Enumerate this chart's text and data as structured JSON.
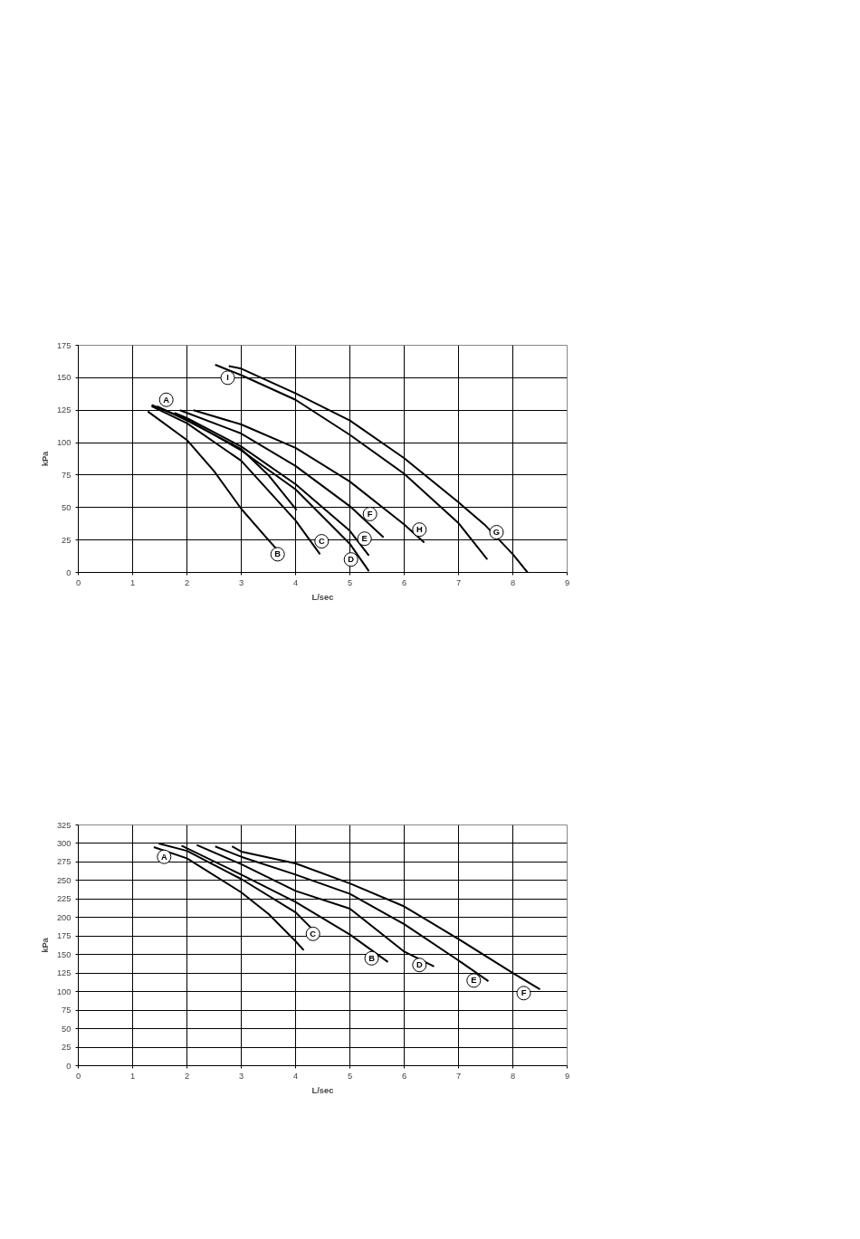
{
  "chart_data": [
    {
      "type": "line",
      "xlabel": "L/sec",
      "ylabel": "kPa",
      "xlim": [
        0,
        9
      ],
      "ylim": [
        0,
        175
      ],
      "xticks": [
        0,
        1,
        2,
        3,
        4,
        5,
        6,
        7,
        8,
        9
      ],
      "yticks": [
        0,
        25,
        50,
        75,
        100,
        125,
        150,
        175
      ],
      "grid": true,
      "marker": "none",
      "line_style": "solid",
      "series": [
        {
          "color": "#000000",
          "x": [
            1.45,
            2,
            3,
            3.5,
            4.02
          ],
          "values": [
            128,
            117,
            95,
            75,
            48
          ]
        },
        {
          "color": "#000000",
          "x": [
            1.28,
            2,
            2.5,
            3,
            3.5,
            3.78
          ],
          "values": [
            124,
            102,
            78,
            49,
            25,
            12
          ]
        },
        {
          "color": "#000000",
          "x": [
            1.35,
            2,
            3,
            4,
            4.45
          ],
          "values": [
            128,
            115,
            86,
            40,
            14
          ]
        },
        {
          "color": "#000000",
          "x": [
            1.35,
            2,
            3,
            4,
            5,
            5.35
          ],
          "values": [
            129,
            118,
            94,
            64,
            22,
            1
          ]
        },
        {
          "color": "#000000",
          "x": [
            1.77,
            2,
            3,
            4,
            5,
            5.35
          ],
          "values": [
            123,
            119,
            97,
            68,
            32,
            13
          ]
        },
        {
          "color": "#000000",
          "x": [
            1.87,
            3,
            4,
            5,
            5.62
          ],
          "values": [
            125,
            107,
            82,
            51,
            27
          ]
        },
        {
          "color": "#000000",
          "x": [
            2.77,
            3,
            4,
            5,
            6,
            7,
            7.5,
            8,
            8.27
          ],
          "values": [
            159,
            157,
            138,
            117,
            88,
            54,
            36,
            14,
            0
          ]
        },
        {
          "color": "#000000",
          "x": [
            2.12,
            3,
            4,
            5,
            6,
            6.37
          ],
          "values": [
            125,
            114,
            96,
            70,
            37,
            23
          ]
        },
        {
          "color": "#000000",
          "x": [
            2.52,
            3,
            4,
            5,
            6,
            7,
            7.53
          ],
          "values": [
            160,
            152,
            133,
            106,
            76,
            38,
            10
          ]
        }
      ],
      "annotations": [
        {
          "text": "A",
          "x": 1.62,
          "y": 133
        },
        {
          "text": "B",
          "x": 3.67,
          "y": 14
        },
        {
          "text": "C",
          "x": 4.48,
          "y": 24
        },
        {
          "text": "D",
          "x": 5.02,
          "y": 10
        },
        {
          "text": "E",
          "x": 5.27,
          "y": 26
        },
        {
          "text": "F",
          "x": 5.37,
          "y": 45
        },
        {
          "text": "G",
          "x": 7.7,
          "y": 31
        },
        {
          "text": "H",
          "x": 6.28,
          "y": 33
        },
        {
          "text": "I",
          "x": 2.75,
          "y": 150
        }
      ]
    },
    {
      "type": "line",
      "xlabel": "L/sec",
      "ylabel": "kPa",
      "xlim": [
        0,
        9
      ],
      "ylim": [
        0,
        325
      ],
      "xticks": [
        0,
        1,
        2,
        3,
        4,
        5,
        6,
        7,
        8,
        9
      ],
      "yticks": [
        0,
        25,
        50,
        75,
        100,
        125,
        150,
        175,
        200,
        225,
        250,
        275,
        300,
        325
      ],
      "grid": true,
      "marker": "none",
      "line_style": "solid",
      "series": [
        {
          "color": "#000000",
          "x": [
            1.39,
            2,
            3,
            3.5,
            4,
            4.15
          ],
          "values": [
            295,
            280,
            234,
            205,
            168,
            156
          ]
        },
        {
          "color": "#000000",
          "x": [
            1.48,
            2,
            3,
            4,
            4.3
          ],
          "values": [
            300,
            290,
            252,
            207,
            185
          ]
        },
        {
          "color": "#000000",
          "x": [
            1.9,
            3,
            4,
            5,
            5.7
          ],
          "values": [
            297,
            258,
            221,
            177,
            140
          ]
        },
        {
          "color": "#000000",
          "x": [
            2.18,
            3,
            4,
            5,
            6,
            6.55
          ],
          "values": [
            298,
            272,
            236,
            212,
            154,
            134
          ]
        },
        {
          "color": "#000000",
          "x": [
            2.52,
            3,
            4,
            5,
            6,
            7,
            7.55
          ],
          "values": [
            296,
            282,
            258,
            232,
            191,
            142,
            114
          ]
        },
        {
          "color": "#000000",
          "x": [
            2.83,
            3,
            4,
            5,
            6,
            7,
            8,
            8.5
          ],
          "values": [
            296,
            289,
            273,
            246,
            215,
            171,
            125,
            103
          ]
        }
      ],
      "annotations": [
        {
          "text": "A",
          "x": 1.58,
          "y": 282
        },
        {
          "text": "C",
          "x": 4.32,
          "y": 178
        },
        {
          "text": "B",
          "x": 5.4,
          "y": 145
        },
        {
          "text": "D",
          "x": 6.28,
          "y": 136
        },
        {
          "text": "E",
          "x": 7.28,
          "y": 115
        },
        {
          "text": "F",
          "x": 8.2,
          "y": 98
        }
      ]
    }
  ]
}
